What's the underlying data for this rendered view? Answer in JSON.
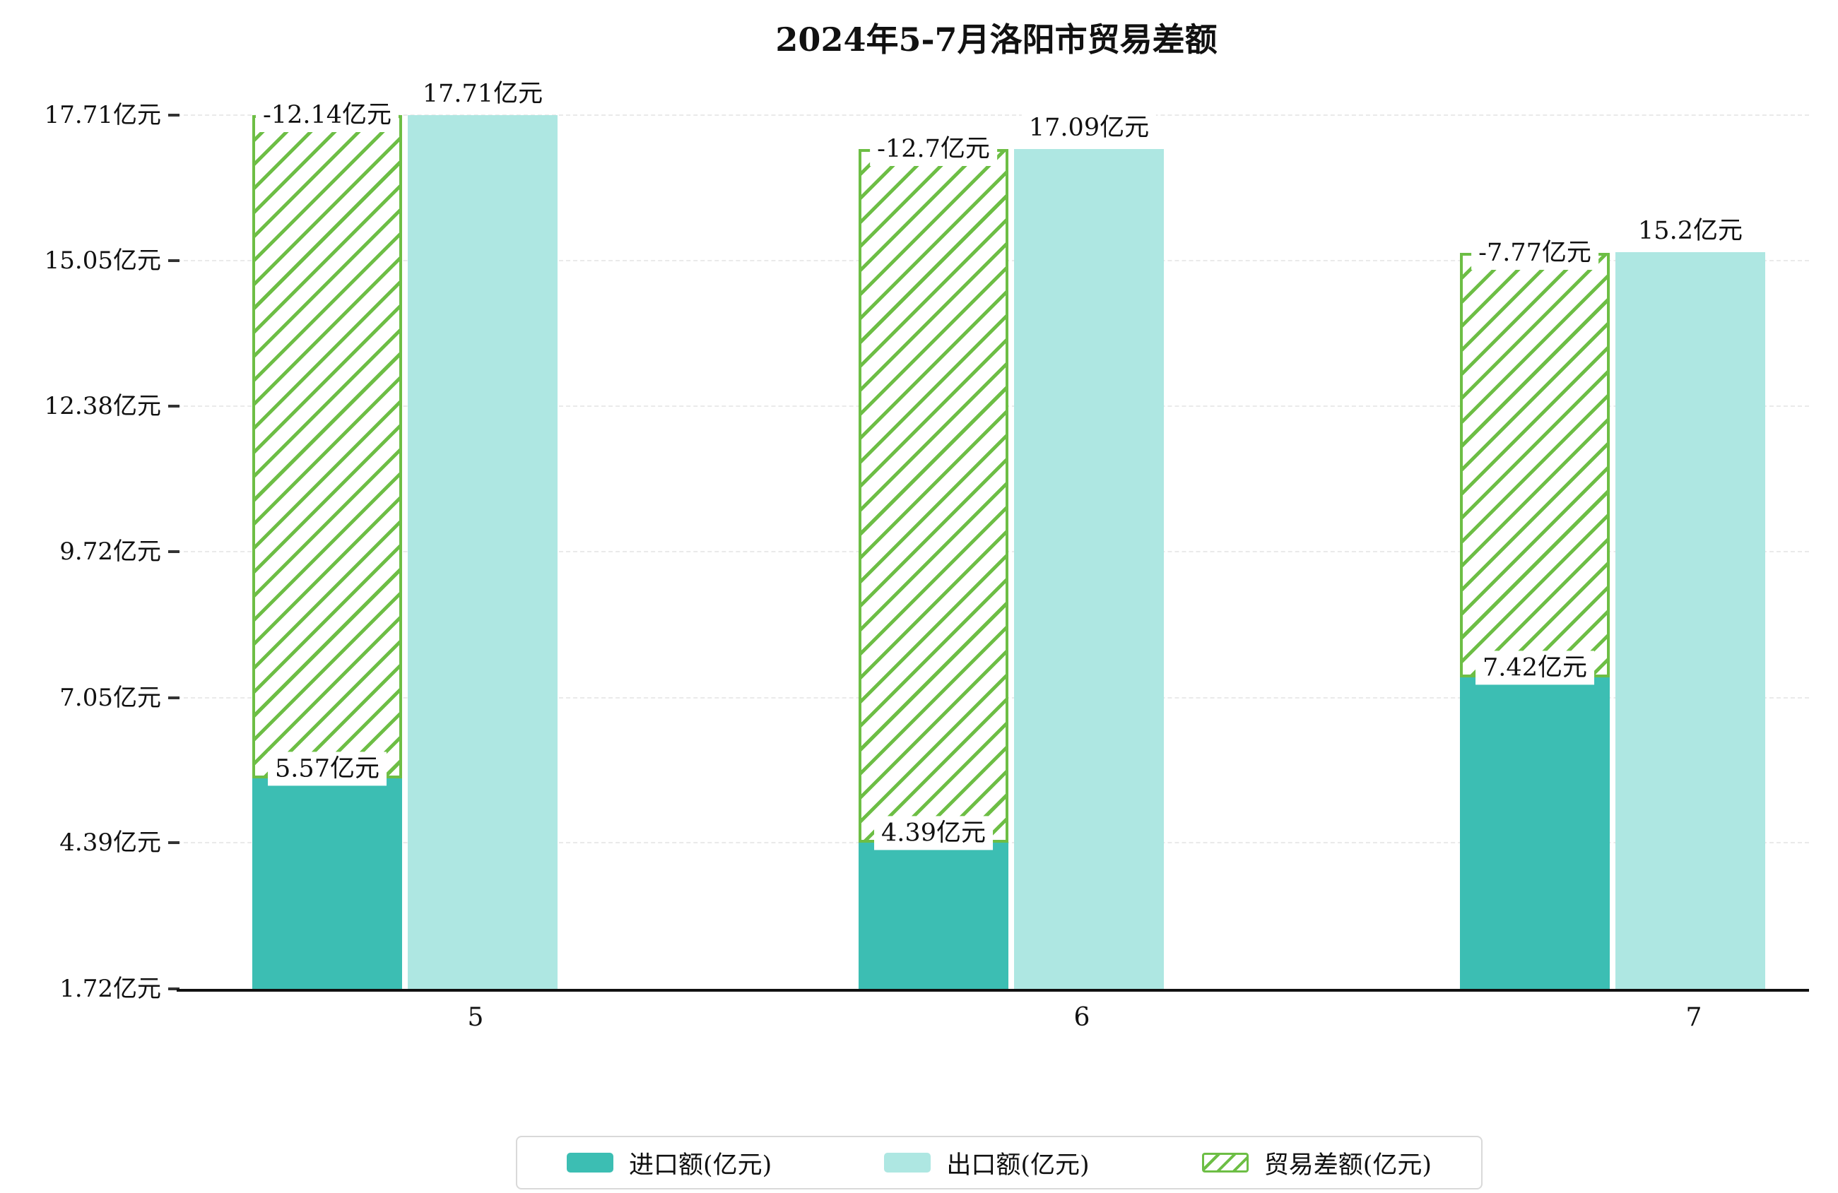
{
  "title": "2024年5-7月洛阳市贸易差额",
  "y_axis": {
    "tick_labels": [
      "1.72亿元",
      "4.39亿元",
      "7.05亿元",
      "9.72亿元",
      "12.38亿元",
      "15.05亿元",
      "17.71亿元"
    ]
  },
  "x_axis": {
    "labels": [
      "5",
      "6",
      "7"
    ]
  },
  "chart_data": {
    "type": "bar",
    "title": "2024年5-7月洛阳市贸易差额",
    "categories": [
      "5",
      "6",
      "7"
    ],
    "series": [
      {
        "name": "进口额(亿元)",
        "key": "import",
        "values": [
          5.57,
          4.39,
          7.42
        ],
        "data_labels": [
          "5.57亿元",
          "4.39亿元",
          "7.42亿元"
        ],
        "color": "#3cbeb3",
        "style": "solid"
      },
      {
        "name": "出口额(亿元)",
        "key": "export",
        "values": [
          17.71,
          17.09,
          15.2
        ],
        "data_labels": [
          "17.71亿元",
          "17.09亿元",
          "15.2亿元"
        ],
        "color": "#aee7e2",
        "style": "solid"
      },
      {
        "name": "贸易差额(亿元)",
        "key": "trade-balance",
        "values": [
          -12.14,
          -12.7,
          -7.77
        ],
        "data_labels": [
          "-12.14亿元",
          "-12.7亿元",
          "-7.77亿元"
        ],
        "color": "#6dbe45",
        "style": "hatched"
      }
    ],
    "ylim": [
      1.72,
      17.71
    ],
    "y_ticks": [
      1.72,
      4.39,
      7.05,
      9.72,
      12.38,
      15.05,
      17.71
    ],
    "grid": true,
    "legend_position": "bottom"
  },
  "colors": {
    "import_bar": "#3cbeb3",
    "export_bar": "#aee7e2",
    "balance_hatch": "#6dbe45",
    "axis_line": "#111111",
    "grid_line": "#eaeaea",
    "text": "#111111",
    "legend_border": "#d9d9d9",
    "background": "#ffffff"
  }
}
